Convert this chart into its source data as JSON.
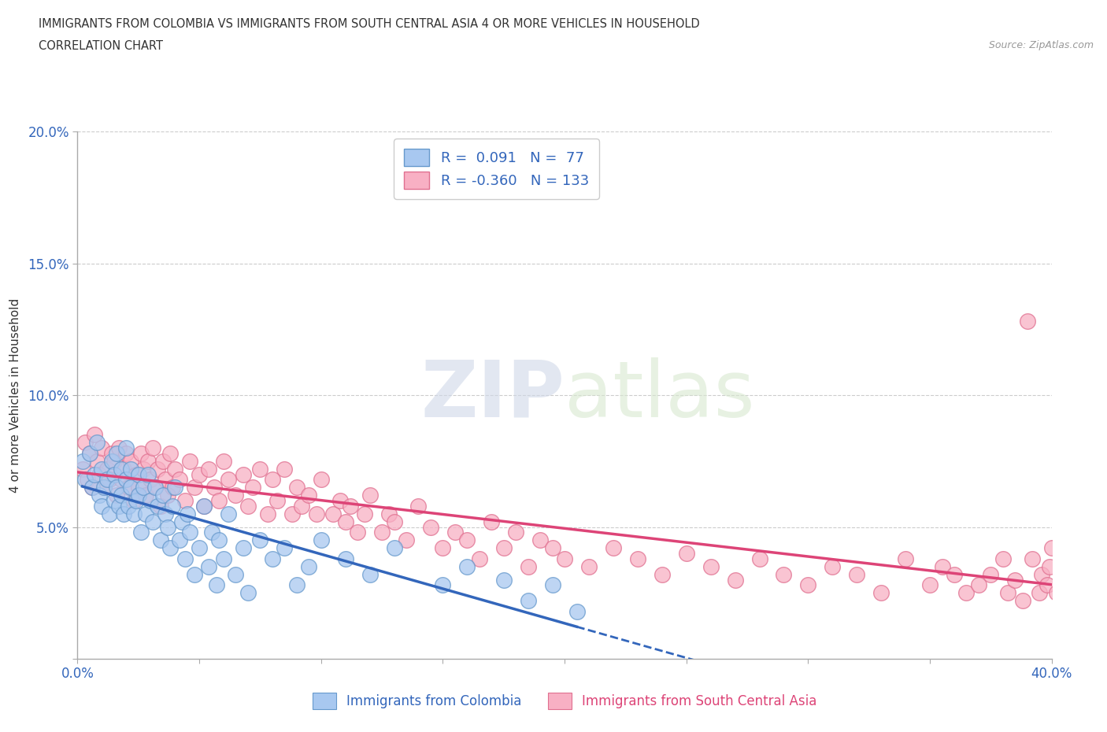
{
  "title": "IMMIGRANTS FROM COLOMBIA VS IMMIGRANTS FROM SOUTH CENTRAL ASIA 4 OR MORE VEHICLES IN HOUSEHOLD",
  "subtitle": "CORRELATION CHART",
  "source": "Source: ZipAtlas.com",
  "ylabel": "4 or more Vehicles in Household",
  "xlim": [
    0.0,
    0.4
  ],
  "ylim": [
    0.0,
    0.2
  ],
  "xticks": [
    0.0,
    0.05,
    0.1,
    0.15,
    0.2,
    0.25,
    0.3,
    0.35,
    0.4
  ],
  "xticklabels": [
    "0.0%",
    "",
    "",
    "",
    "",
    "",
    "",
    "",
    "40.0%"
  ],
  "yticks": [
    0.0,
    0.05,
    0.1,
    0.15,
    0.2
  ],
  "yticklabels": [
    "",
    "5.0%",
    "10.0%",
    "15.0%",
    "20.0%"
  ],
  "grid_yticks": [
    0.05,
    0.1,
    0.15,
    0.2
  ],
  "colombia_color": "#a8c8f0",
  "colombia_edge": "#6699cc",
  "sca_color": "#f8b0c4",
  "sca_edge": "#e07090",
  "trend_colombia_color": "#3366bb",
  "trend_sca_color": "#dd4477",
  "R_colombia": 0.091,
  "N_colombia": 77,
  "R_sca": -0.36,
  "N_sca": 133,
  "watermark": "ZIPatlas",
  "colombia_x": [
    0.002,
    0.003,
    0.005,
    0.006,
    0.007,
    0.008,
    0.009,
    0.01,
    0.01,
    0.011,
    0.012,
    0.013,
    0.014,
    0.015,
    0.015,
    0.016,
    0.016,
    0.017,
    0.018,
    0.018,
    0.019,
    0.02,
    0.02,
    0.021,
    0.022,
    0.022,
    0.023,
    0.024,
    0.025,
    0.025,
    0.026,
    0.027,
    0.028,
    0.029,
    0.03,
    0.031,
    0.032,
    0.033,
    0.034,
    0.035,
    0.036,
    0.037,
    0.038,
    0.039,
    0.04,
    0.042,
    0.043,
    0.044,
    0.045,
    0.046,
    0.048,
    0.05,
    0.052,
    0.054,
    0.055,
    0.057,
    0.058,
    0.06,
    0.062,
    0.065,
    0.068,
    0.07,
    0.075,
    0.08,
    0.085,
    0.09,
    0.095,
    0.1,
    0.11,
    0.12,
    0.13,
    0.15,
    0.16,
    0.175,
    0.185,
    0.195,
    0.205
  ],
  "colombia_y": [
    0.075,
    0.068,
    0.078,
    0.065,
    0.07,
    0.082,
    0.062,
    0.058,
    0.072,
    0.065,
    0.068,
    0.055,
    0.075,
    0.06,
    0.07,
    0.065,
    0.078,
    0.058,
    0.062,
    0.072,
    0.055,
    0.068,
    0.08,
    0.058,
    0.065,
    0.072,
    0.055,
    0.06,
    0.07,
    0.062,
    0.048,
    0.065,
    0.055,
    0.07,
    0.06,
    0.052,
    0.065,
    0.058,
    0.045,
    0.062,
    0.055,
    0.05,
    0.042,
    0.058,
    0.065,
    0.045,
    0.052,
    0.038,
    0.055,
    0.048,
    0.032,
    0.042,
    0.058,
    0.035,
    0.048,
    0.028,
    0.045,
    0.038,
    0.055,
    0.032,
    0.042,
    0.025,
    0.045,
    0.038,
    0.042,
    0.028,
    0.035,
    0.045,
    0.038,
    0.032,
    0.042,
    0.028,
    0.035,
    0.03,
    0.022,
    0.028,
    0.018
  ],
  "sca_x": [
    0.002,
    0.003,
    0.004,
    0.005,
    0.006,
    0.007,
    0.008,
    0.009,
    0.01,
    0.011,
    0.012,
    0.013,
    0.014,
    0.015,
    0.016,
    0.017,
    0.018,
    0.019,
    0.02,
    0.021,
    0.022,
    0.023,
    0.024,
    0.025,
    0.026,
    0.027,
    0.028,
    0.029,
    0.03,
    0.031,
    0.032,
    0.033,
    0.034,
    0.035,
    0.036,
    0.037,
    0.038,
    0.039,
    0.04,
    0.042,
    0.044,
    0.046,
    0.048,
    0.05,
    0.052,
    0.054,
    0.056,
    0.058,
    0.06,
    0.062,
    0.065,
    0.068,
    0.07,
    0.072,
    0.075,
    0.078,
    0.08,
    0.082,
    0.085,
    0.088,
    0.09,
    0.092,
    0.095,
    0.098,
    0.1,
    0.105,
    0.108,
    0.11,
    0.112,
    0.115,
    0.118,
    0.12,
    0.125,
    0.128,
    0.13,
    0.135,
    0.14,
    0.145,
    0.15,
    0.155,
    0.16,
    0.165,
    0.17,
    0.175,
    0.18,
    0.185,
    0.19,
    0.195,
    0.2,
    0.21,
    0.22,
    0.23,
    0.24,
    0.25,
    0.26,
    0.27,
    0.28,
    0.29,
    0.3,
    0.31,
    0.32,
    0.33,
    0.34,
    0.35,
    0.355,
    0.36,
    0.365,
    0.37,
    0.375,
    0.38,
    0.382,
    0.385,
    0.388,
    0.39,
    0.392,
    0.395,
    0.396,
    0.398,
    0.399,
    0.4,
    0.402,
    0.408,
    0.415
  ],
  "sca_y": [
    0.072,
    0.082,
    0.068,
    0.078,
    0.065,
    0.085,
    0.075,
    0.07,
    0.08,
    0.065,
    0.072,
    0.068,
    0.078,
    0.075,
    0.062,
    0.08,
    0.068,
    0.072,
    0.078,
    0.065,
    0.075,
    0.06,
    0.07,
    0.065,
    0.078,
    0.072,
    0.062,
    0.075,
    0.068,
    0.08,
    0.065,
    0.072,
    0.058,
    0.075,
    0.068,
    0.062,
    0.078,
    0.065,
    0.072,
    0.068,
    0.06,
    0.075,
    0.065,
    0.07,
    0.058,
    0.072,
    0.065,
    0.06,
    0.075,
    0.068,
    0.062,
    0.07,
    0.058,
    0.065,
    0.072,
    0.055,
    0.068,
    0.06,
    0.072,
    0.055,
    0.065,
    0.058,
    0.062,
    0.055,
    0.068,
    0.055,
    0.06,
    0.052,
    0.058,
    0.048,
    0.055,
    0.062,
    0.048,
    0.055,
    0.052,
    0.045,
    0.058,
    0.05,
    0.042,
    0.048,
    0.045,
    0.038,
    0.052,
    0.042,
    0.048,
    0.035,
    0.045,
    0.042,
    0.038,
    0.035,
    0.042,
    0.038,
    0.032,
    0.04,
    0.035,
    0.03,
    0.038,
    0.032,
    0.028,
    0.035,
    0.032,
    0.025,
    0.038,
    0.028,
    0.035,
    0.032,
    0.025,
    0.028,
    0.032,
    0.038,
    0.025,
    0.03,
    0.022,
    0.128,
    0.038,
    0.025,
    0.032,
    0.028,
    0.035,
    0.042,
    0.025,
    0.035,
    0.028
  ]
}
